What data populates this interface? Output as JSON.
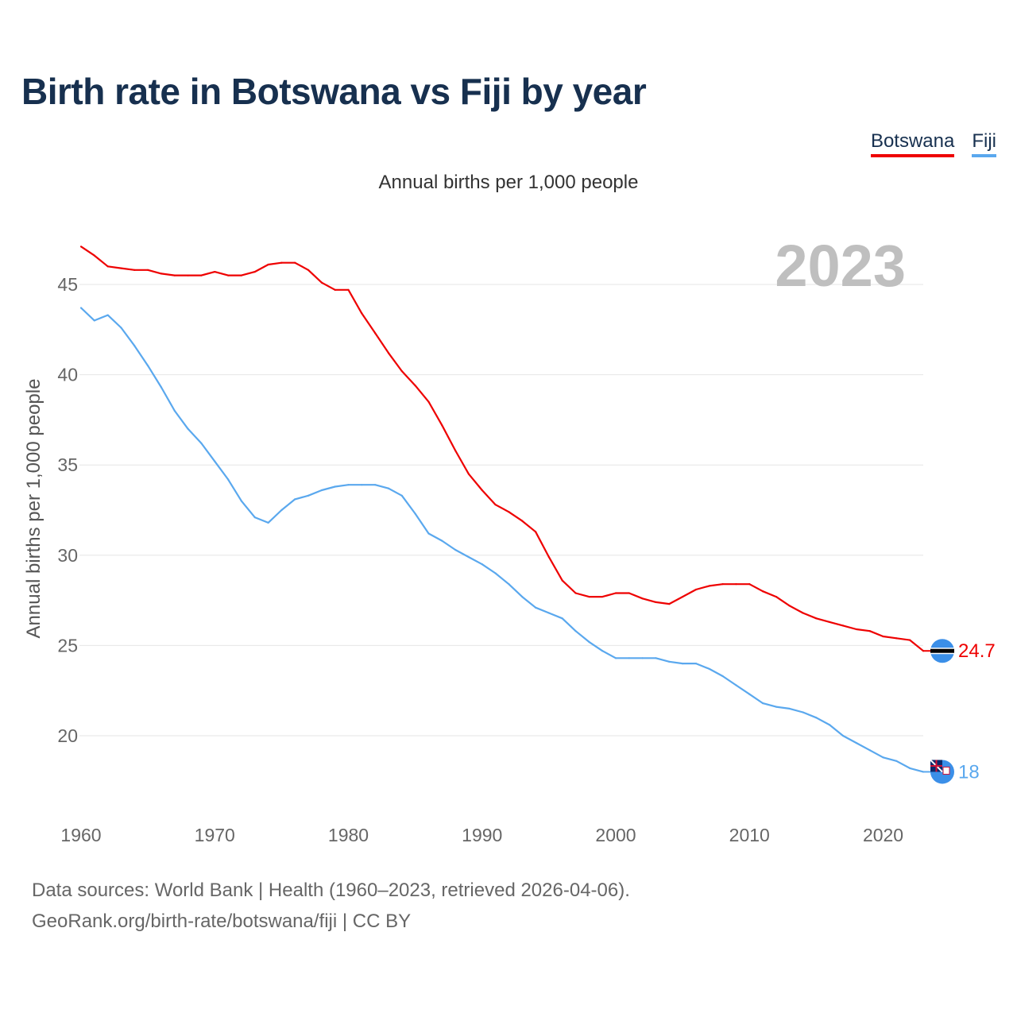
{
  "title": "Birth rate in Botswana vs Fiji by year",
  "subtitle": "Annual births per 1,000 people",
  "legend": [
    {
      "label": "Botswana",
      "color": "#ee0000"
    },
    {
      "label": "Fiji",
      "color": "#5aa8ee"
    }
  ],
  "year_watermark": "2023",
  "footer": {
    "line1": "Data sources: World Bank | Health (1960–2023, retrieved 2026-04-06).",
    "line2": "GeoRank.org/birth-rate/botswana/fiji | CC BY"
  },
  "chart_data": {
    "type": "line",
    "title": "Birth rate in Botswana vs Fiji by year",
    "xlabel": "",
    "ylabel": "Annual births per 1,000 people",
    "xlim": [
      1960,
      2023
    ],
    "ylim": [
      16.5,
      47.5
    ],
    "x_ticks": [
      1960,
      1970,
      1980,
      1990,
      2000,
      2010,
      2020
    ],
    "y_ticks": [
      20,
      25,
      30,
      35,
      40,
      45
    ],
    "grid": true,
    "legend_position": "top-right",
    "x": [
      1960,
      1961,
      1962,
      1963,
      1964,
      1965,
      1966,
      1967,
      1968,
      1969,
      1970,
      1971,
      1972,
      1973,
      1974,
      1975,
      1976,
      1977,
      1978,
      1979,
      1980,
      1981,
      1982,
      1983,
      1984,
      1985,
      1986,
      1987,
      1988,
      1989,
      1990,
      1991,
      1992,
      1993,
      1994,
      1995,
      1996,
      1997,
      1998,
      1999,
      2000,
      2001,
      2002,
      2003,
      2004,
      2005,
      2006,
      2007,
      2008,
      2009,
      2010,
      2011,
      2012,
      2013,
      2014,
      2015,
      2016,
      2017,
      2018,
      2019,
      2020,
      2021,
      2022,
      2023
    ],
    "series": [
      {
        "name": "Botswana",
        "color": "#ee0000",
        "end_label": "24.7",
        "values": [
          47.1,
          46.6,
          46.0,
          45.9,
          45.8,
          45.8,
          45.6,
          45.5,
          45.5,
          45.5,
          45.7,
          45.5,
          45.5,
          45.7,
          46.1,
          46.2,
          46.2,
          45.8,
          45.1,
          44.7,
          44.7,
          43.4,
          42.3,
          41.2,
          40.2,
          39.4,
          38.5,
          37.2,
          35.8,
          34.5,
          33.6,
          32.8,
          32.4,
          31.9,
          31.3,
          29.9,
          28.6,
          27.9,
          27.7,
          27.7,
          27.9,
          27.9,
          27.6,
          27.4,
          27.3,
          27.7,
          28.1,
          28.3,
          28.4,
          28.4,
          28.4,
          28.0,
          27.7,
          27.2,
          26.8,
          26.5,
          26.3,
          26.1,
          25.9,
          25.8,
          25.5,
          25.4,
          25.3,
          24.7
        ]
      },
      {
        "name": "Fiji",
        "color": "#5aa8ee",
        "end_label": "18",
        "values": [
          43.7,
          43.0,
          43.3,
          42.6,
          41.6,
          40.5,
          39.3,
          38.0,
          37.0,
          36.2,
          35.2,
          34.2,
          33.0,
          32.1,
          31.8,
          32.5,
          33.1,
          33.3,
          33.6,
          33.8,
          33.9,
          33.9,
          33.9,
          33.7,
          33.3,
          32.3,
          31.2,
          30.8,
          30.3,
          29.9,
          29.5,
          29.0,
          28.4,
          27.7,
          27.1,
          26.8,
          26.5,
          25.8,
          25.2,
          24.7,
          24.3,
          24.3,
          24.3,
          24.3,
          24.1,
          24.0,
          24.0,
          23.7,
          23.3,
          22.8,
          22.3,
          21.8,
          21.6,
          21.5,
          21.3,
          21.0,
          20.6,
          20.0,
          19.6,
          19.2,
          18.8,
          18.6,
          18.2,
          18.0
        ]
      }
    ]
  }
}
